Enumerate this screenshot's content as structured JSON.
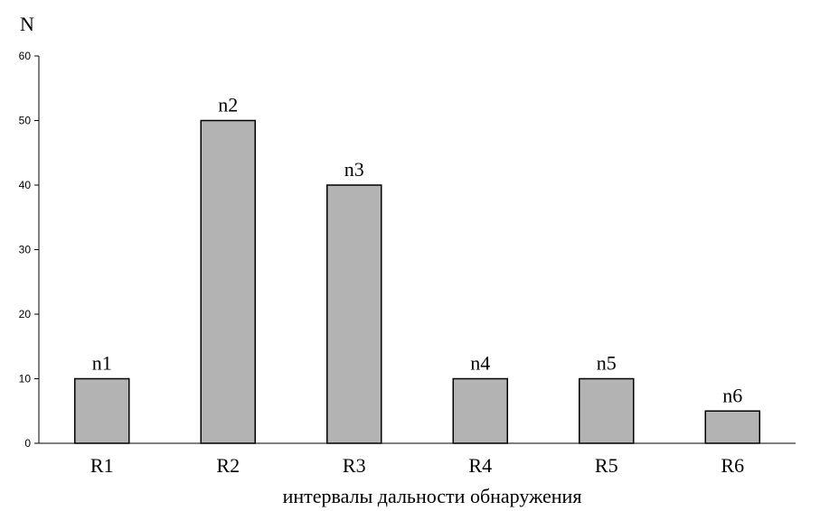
{
  "chart_data": {
    "type": "bar",
    "ylabel": "N",
    "xlabel": "интервалы дальности обнаружения",
    "categories": [
      "R1",
      "R2",
      "R3",
      "R4",
      "R5",
      "R6"
    ],
    "values": [
      10,
      50,
      40,
      10,
      10,
      5
    ],
    "data_labels": [
      "n1",
      "n2",
      "n3",
      "n4",
      "n5",
      "n6"
    ],
    "ylim": [
      0,
      60
    ],
    "yticks": [
      "0",
      "10",
      "20",
      "30",
      "40",
      "50",
      "60"
    ],
    "grid": false,
    "legend": "none",
    "bar_color": "#b3b3b3",
    "edge_color": "#000000"
  }
}
